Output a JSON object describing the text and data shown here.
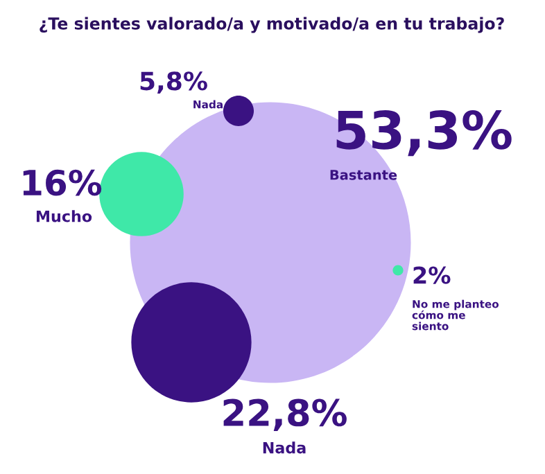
{
  "chart_data": {
    "type": "other",
    "title": "¿Te sientes valorado/a y motivado/a en tu trabajo?",
    "categories": [
      "Bastante",
      "Mucho",
      "Nada",
      "Nada",
      "No me planteo\ncómo me\nsiento"
    ],
    "values": [
      53.3,
      16,
      5.8,
      22.8,
      2
    ],
    "value_labels": [
      "53,3%",
      "16%",
      "5,8%",
      "22,8%",
      "2%"
    ],
    "colors": [
      "#c9b6f4",
      "#3fe8a8",
      "#3a1282",
      "#3a1282",
      "#3fe8a8"
    ]
  }
}
